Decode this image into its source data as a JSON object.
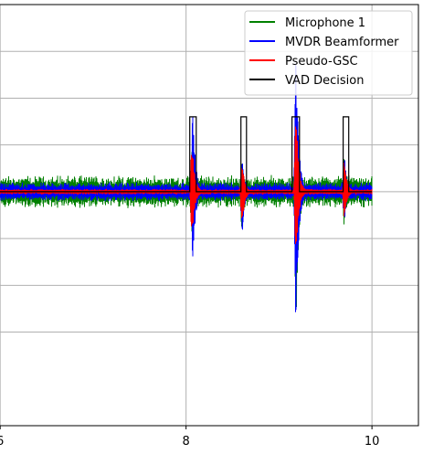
{
  "chart_data": {
    "type": "line",
    "title": "",
    "xlabel": "",
    "ylabel": "",
    "xlim": [
      5.9,
      10.5
    ],
    "ylim": [
      -1.25,
      1.0
    ],
    "x_ticks": [
      6,
      8,
      10
    ],
    "x_tick_labels": [
      "6",
      "8",
      "10"
    ],
    "y_gridlines": [
      -0.75,
      -0.5,
      -0.25,
      0,
      0.25,
      0.5,
      0.75
    ],
    "grid": true,
    "legend_position": "top-right",
    "series": [
      {
        "name": "Microphone 1",
        "color": "#008000",
        "kind": "noise-signal",
        "noise_amplitude": 0.07,
        "bursts": [
          {
            "t": 8.06,
            "peak": 0.3,
            "trough": -0.3
          },
          {
            "t": 8.6,
            "peak": 0.2,
            "trough": -0.25
          },
          {
            "t": 9.18,
            "peak": 0.3,
            "trough": -0.8
          },
          {
            "t": 9.7,
            "peak": 0.2,
            "trough": -0.2
          }
        ]
      },
      {
        "name": "MVDR Beamformer",
        "color": "#0000ff",
        "kind": "noise-signal",
        "noise_amplitude": 0.04,
        "bursts": [
          {
            "t": 8.07,
            "peak": 0.5,
            "trough": -0.43
          },
          {
            "t": 8.6,
            "peak": 0.2,
            "trough": -0.27
          },
          {
            "t": 9.18,
            "peak": 0.82,
            "trough": -0.77
          },
          {
            "t": 9.7,
            "peak": 0.25,
            "trough": -0.2
          }
        ]
      },
      {
        "name": "Pseudo-GSC",
        "color": "#ff0000",
        "kind": "noise-signal",
        "noise_amplitude": 0.012,
        "bursts": [
          {
            "t": 8.06,
            "peak": 0.32,
            "trough": -0.3
          },
          {
            "t": 8.6,
            "peak": 0.18,
            "trough": -0.2
          },
          {
            "t": 9.18,
            "peak": 0.5,
            "trough": -0.4
          },
          {
            "t": 9.7,
            "peak": 0.18,
            "trough": -0.15
          }
        ]
      },
      {
        "name": "VAD Decision",
        "color": "#000000",
        "kind": "step",
        "high": 0.4,
        "low": 0,
        "segments": [
          {
            "start": 5.5,
            "end": 5.98
          },
          {
            "start": 8.04,
            "end": 8.11
          },
          {
            "start": 8.59,
            "end": 8.65
          },
          {
            "start": 9.14,
            "end": 9.22
          },
          {
            "start": 9.69,
            "end": 9.75
          }
        ]
      }
    ]
  }
}
